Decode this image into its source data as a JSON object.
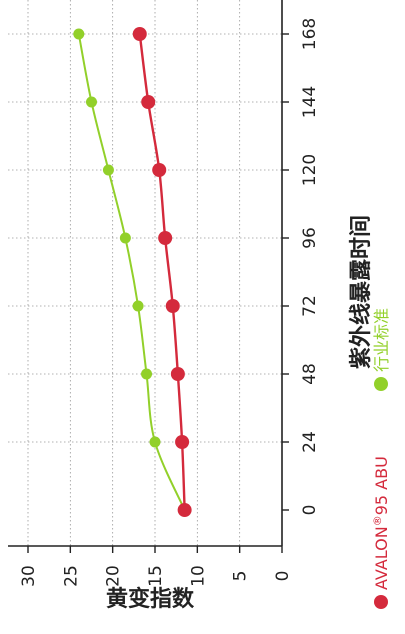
{
  "chart_data": {
    "type": "line",
    "orientation": "rotated-90",
    "xlabel": "紫外线暴露时间",
    "ylabel": "黄变指数",
    "x": [
      0,
      24,
      48,
      72,
      96,
      120,
      144,
      168
    ],
    "xticks": [
      "0",
      "24",
      "48",
      "72",
      "96",
      "120",
      "144",
      "168"
    ],
    "yticks": [
      "0",
      "5",
      "10",
      "15",
      "20",
      "25",
      "30"
    ],
    "xlim": [
      0,
      168
    ],
    "ylim": [
      0,
      30
    ],
    "grid": true,
    "legend_position": "bottom",
    "series": [
      {
        "name": "AVALON®95 ABU",
        "name_main": "AVALON",
        "name_sup": "®",
        "name_rest": "95 ABU",
        "color": "#d42a3c",
        "values": [
          11.5,
          11.8,
          12.3,
          12.9,
          13.8,
          14.5,
          15.8,
          16.8
        ]
      },
      {
        "name": "行业标准",
        "color": "#92d02a",
        "values": [
          11.5,
          15.0,
          16.0,
          17.0,
          18.5,
          20.5,
          22.5,
          24.0
        ]
      }
    ]
  }
}
